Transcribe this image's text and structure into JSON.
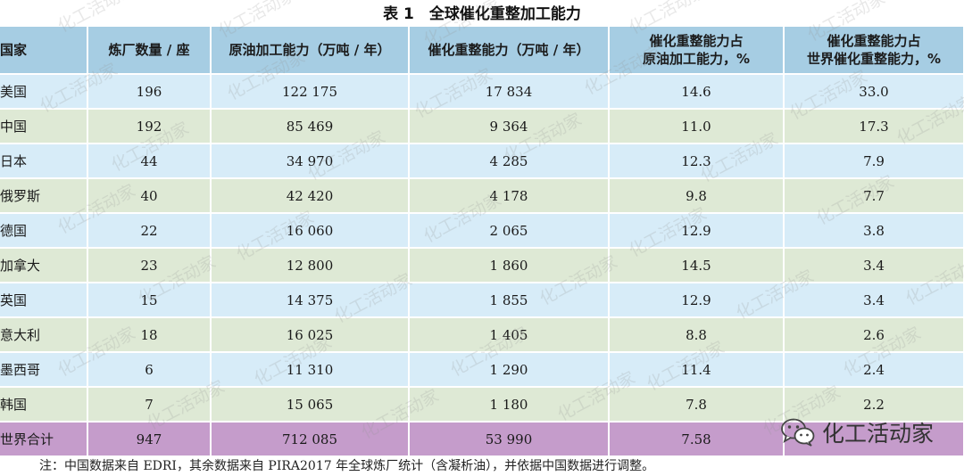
{
  "title": "表 1　全球催化重整加工能力",
  "table": {
    "headers": [
      {
        "line1": "国家",
        "line2": ""
      },
      {
        "line1": "炼厂数量 / 座",
        "line2": ""
      },
      {
        "line1": "原油加工能力（万吨 / 年）",
        "line2": ""
      },
      {
        "line1": "催化重整能力（万吨 / 年）",
        "line2": ""
      },
      {
        "line1": "催化重整能力占",
        "line2": "原油加工能力，%"
      },
      {
        "line1": "催化重整能力占",
        "line2": "世界催化重整能力，%"
      }
    ],
    "rows": [
      [
        "美国",
        "196",
        "122 175",
        "17 834",
        "14.6",
        "33.0"
      ],
      [
        "中国",
        "192",
        "85 469",
        "9 364",
        "11.0",
        "17.3"
      ],
      [
        "日本",
        "44",
        "34 970",
        "4 285",
        "12.3",
        "7.9"
      ],
      [
        "俄罗斯",
        "40",
        "42 420",
        "4 178",
        "9.8",
        "7.7"
      ],
      [
        "德国",
        "22",
        "16 060",
        "2 065",
        "12.9",
        "3.8"
      ],
      [
        "加拿大",
        "23",
        "12 800",
        "1 860",
        "14.5",
        "3.4"
      ],
      [
        "英国",
        "15",
        "14 375",
        "1 855",
        "12.9",
        "3.4"
      ],
      [
        "意大利",
        "18",
        "16 025",
        "1 405",
        "8.8",
        "2.6"
      ],
      [
        "墨西哥",
        "6",
        "11 310",
        "1 290",
        "11.4",
        "2.4"
      ],
      [
        "韩国",
        "7",
        "15 065",
        "1 180",
        "7.8",
        "2.2"
      ]
    ],
    "total": [
      "世界合计",
      "947",
      "712 085",
      "53 990",
      "7.58",
      ""
    ]
  },
  "note": "注：中国数据来自 EDRI，其余数据来自 PIRA2017 年全球炼厂统计（含凝析油），并依据中国数据进行调整。",
  "watermark": {
    "text": "化工活动家",
    "logo_text": "化工活动家",
    "logo_icon": "wechat-icon"
  }
}
